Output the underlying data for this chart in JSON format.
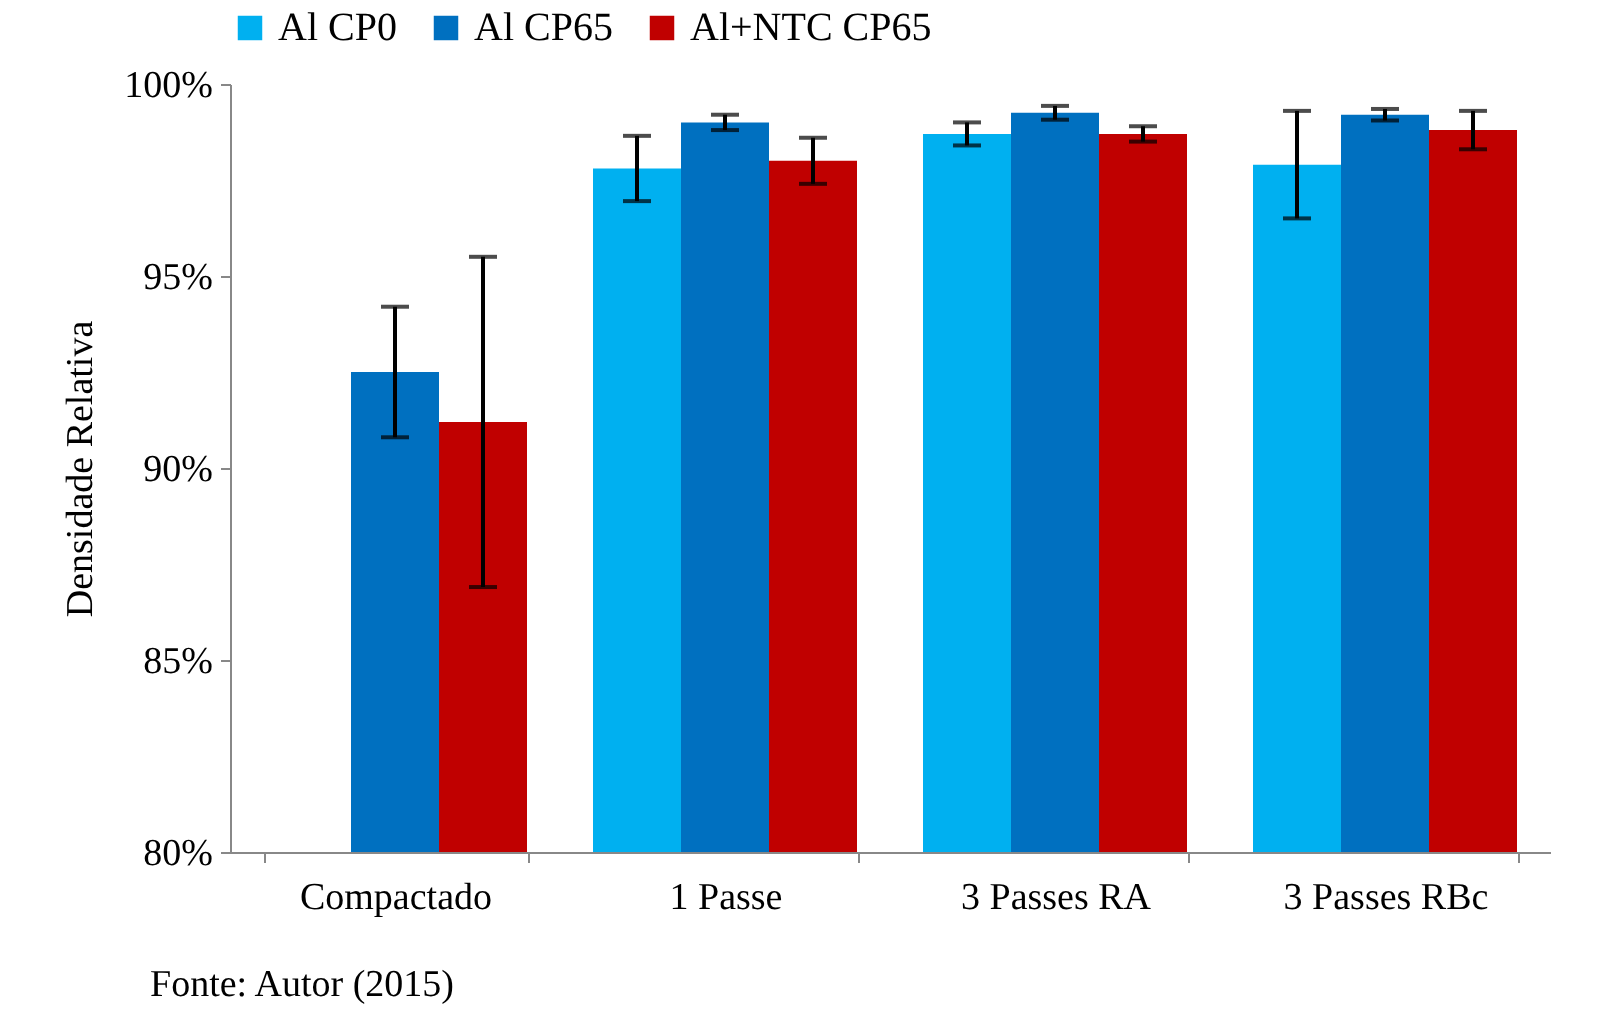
{
  "chart_data": {
    "type": "bar",
    "ylabel": "Densidade Relativa",
    "categories": [
      "Compactado",
      "1 Passe",
      "3 Passes RA",
      "3 Passes RBc"
    ],
    "series": [
      {
        "name": "Al CP0",
        "color": "#00b0f0",
        "values": [
          null,
          97.8,
          98.7,
          97.9
        ],
        "errors": [
          null,
          0.85,
          0.3,
          1.4
        ]
      },
      {
        "name": "Al CP65",
        "color": "#0070c0",
        "values": [
          92.5,
          99.0,
          99.25,
          99.2
        ],
        "errors": [
          1.7,
          0.2,
          0.18,
          0.15
        ]
      },
      {
        "name": "Al+NTC CP65",
        "color": "#c00000",
        "values": [
          91.2,
          98.0,
          98.7,
          98.8
        ],
        "errors": [
          4.3,
          0.6,
          0.2,
          0.5
        ]
      }
    ],
    "ylim": [
      80,
      100
    ],
    "yticks": [
      {
        "value": 80,
        "label": "80%"
      },
      {
        "value": 85,
        "label": "85%"
      },
      {
        "value": 90,
        "label": "90%"
      },
      {
        "value": 95,
        "label": "95%"
      },
      {
        "value": 100,
        "label": "100%"
      }
    ],
    "grid": false,
    "legend": "top",
    "annotations": [
      "Fonte: Autor (2015)"
    ]
  }
}
